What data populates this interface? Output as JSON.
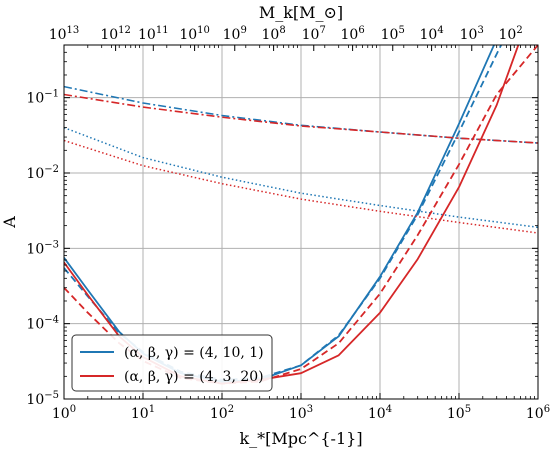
{
  "chart_data": {
    "type": "line",
    "xlabel": "k_*[Mpc^{-1}]",
    "ylabel": "A",
    "top_xlabel": "M_k[M_⊙]",
    "x_scale": "log",
    "y_scale": "log",
    "xlim": [
      1,
      1000000
    ],
    "ylim": [
      1e-05,
      0.5
    ],
    "grid": true,
    "legend_placement": "lower-left",
    "x_ticks": [
      {
        "value": 1,
        "label": "10",
        "exp": "0"
      },
      {
        "value": 10,
        "label": "10",
        "exp": "1"
      },
      {
        "value": 100,
        "label": "10",
        "exp": "2"
      },
      {
        "value": 1000,
        "label": "10",
        "exp": "3"
      },
      {
        "value": 10000,
        "label": "10",
        "exp": "4"
      },
      {
        "value": 100000,
        "label": "10",
        "exp": "5"
      },
      {
        "value": 1000000,
        "label": "10",
        "exp": "6"
      }
    ],
    "y_ticks": [
      {
        "value": 1e-05,
        "label": "10",
        "exp": "−5"
      },
      {
        "value": 0.0001,
        "label": "10",
        "exp": "−4"
      },
      {
        "value": 0.001,
        "label": "10",
        "exp": "−3"
      },
      {
        "value": 0.01,
        "label": "10",
        "exp": "−2"
      },
      {
        "value": 0.1,
        "label": "10",
        "exp": "−1"
      }
    ],
    "top_ticks": [
      {
        "x": 1.0,
        "label": "10",
        "exp": "13"
      },
      {
        "x": 4.5,
        "label": "10",
        "exp": "12"
      },
      {
        "x": 13.5,
        "label": "10",
        "exp": "11"
      },
      {
        "x": 45,
        "label": "10",
        "exp": "10"
      },
      {
        "x": 145,
        "label": "10",
        "exp": "9"
      },
      {
        "x": 450,
        "label": "10",
        "exp": "8"
      },
      {
        "x": 1450,
        "label": "10",
        "exp": "7"
      },
      {
        "x": 4500,
        "label": "10",
        "exp": "6"
      },
      {
        "x": 14500,
        "label": "10",
        "exp": "5"
      },
      {
        "x": 45000,
        "label": "10",
        "exp": "4"
      },
      {
        "x": 145000,
        "label": "10",
        "exp": "3"
      },
      {
        "x": 450000,
        "label": "10",
        "exp": "2"
      }
    ],
    "legend": [
      {
        "label": "(α, β, γ) = (4, 10, 1)",
        "color": "#1f77b4"
      },
      {
        "label": "(α, β, γ) = (4, 3, 20)",
        "color": "#d62728"
      }
    ],
    "series": [
      {
        "color": "#1f77b4",
        "style": "solid",
        "x": [
          1,
          2,
          5,
          10,
          30,
          100,
          300,
          1000,
          3000,
          10000,
          30000,
          100000,
          300000
        ],
        "y": [
          0.00075,
          0.00028,
          7.8e-05,
          4e-05,
          2.2e-05,
          1.7e-05,
          1.8e-05,
          2.8e-05,
          6.8e-05,
          0.00042,
          0.003,
          0.045,
          0.6
        ]
      },
      {
        "color": "#1f77b4",
        "style": "dashed",
        "x": [
          1,
          2,
          5,
          10,
          30,
          100,
          300,
          1000,
          3000,
          10000,
          30000,
          100000,
          300000,
          400000
        ],
        "y": [
          0.00055,
          0.00023,
          7.5e-05,
          4.2e-05,
          2.3e-05,
          1.8e-05,
          1.9e-05,
          2.8e-05,
          7e-05,
          0.0004,
          0.0028,
          0.035,
          0.38,
          0.7
        ]
      },
      {
        "color": "#1f77b4",
        "style": "dashdot",
        "x": [
          1,
          10,
          100,
          1000,
          10000,
          100000,
          1000000
        ],
        "y": [
          0.14,
          0.085,
          0.058,
          0.043,
          0.035,
          0.029,
          0.025
        ]
      },
      {
        "color": "#1f77b4",
        "style": "dotted",
        "x": [
          1,
          10,
          100,
          1000,
          10000,
          100000,
          1000000
        ],
        "y": [
          0.04,
          0.016,
          0.0088,
          0.0054,
          0.0037,
          0.0026,
          0.0019
        ]
      },
      {
        "color": "#d62728",
        "style": "solid",
        "x": [
          1,
          2,
          5,
          10,
          30,
          100,
          300,
          1000,
          3000,
          10000,
          30000,
          100000,
          300000,
          600000
        ],
        "y": [
          0.00065,
          0.00024,
          6.8e-05,
          3.6e-05,
          2e-05,
          1.6e-05,
          1.8e-05,
          2.2e-05,
          3.8e-05,
          0.00014,
          0.00072,
          0.0065,
          0.08,
          0.6
        ]
      },
      {
        "color": "#d62728",
        "style": "dashed",
        "x": [
          1,
          2,
          5,
          10,
          30,
          100,
          300,
          1000,
          3000,
          10000,
          30000,
          100000,
          300000,
          1000000
        ],
        "y": [
          0.0003,
          0.00014,
          5.5e-05,
          3.2e-05,
          1.9e-05,
          1.6e-05,
          1.7e-05,
          2.5e-05,
          5.5e-05,
          0.00025,
          0.0015,
          0.013,
          0.11,
          0.5
        ]
      },
      {
        "color": "#d62728",
        "style": "dashdot",
        "x": [
          1,
          10,
          100,
          1000,
          10000,
          100000,
          1000000
        ],
        "y": [
          0.11,
          0.075,
          0.055,
          0.042,
          0.035,
          0.029,
          0.025
        ]
      },
      {
        "color": "#d62728",
        "style": "dotted",
        "x": [
          1,
          10,
          100,
          1000,
          10000,
          100000,
          1000000
        ],
        "y": [
          0.027,
          0.0125,
          0.0072,
          0.0045,
          0.0031,
          0.0022,
          0.0016
        ]
      }
    ]
  }
}
